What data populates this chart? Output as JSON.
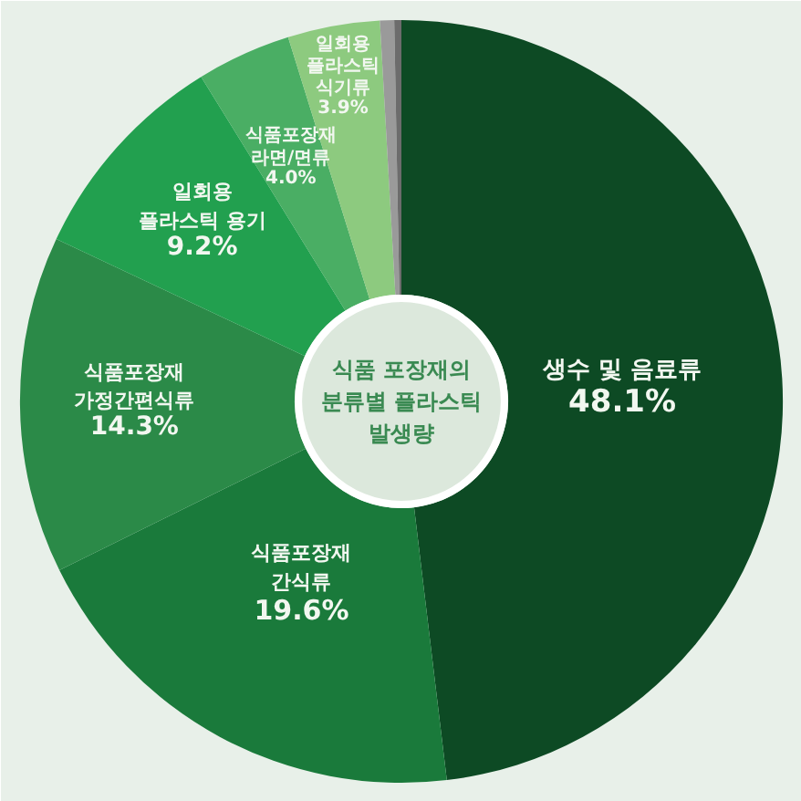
{
  "chart_data": {
    "type": "donut",
    "title": "식품 포장재의 분류별 플라스틱 발생량",
    "categories": [
      "생수 및 음료류",
      "식품포장재 간식류",
      "식품포장재 가정간편식류",
      "일회용 플라스틱 용기",
      "식품포장재 라면/면류",
      "일회용 플라스틱 식기류",
      null,
      null
    ],
    "values": [
      48.1,
      19.6,
      14.3,
      9.2,
      4.0,
      3.9,
      0.6,
      0.3
    ],
    "colors": [
      "#0d4a24",
      "#1a7a3b",
      "#2b8a48",
      "#22a04f",
      "#4aae64",
      "#8dca7f",
      "#9a9a9a",
      "#6c6c6c"
    ],
    "value_labels": [
      "48.1%",
      "19.6%",
      "14.3%",
      "9.2%",
      "4.0%",
      "3.9%",
      null,
      null
    ]
  }
}
